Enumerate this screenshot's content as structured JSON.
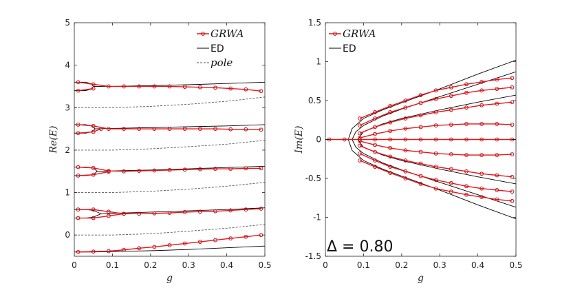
{
  "colors": {
    "grwa": "#e8141c",
    "grwa_marker": "#c41010",
    "ed": "#000000",
    "pole": "#555555"
  },
  "chart_data": [
    {
      "type": "line",
      "xlabel": "g",
      "ylabel": "Re(E)",
      "xlim": [
        0,
        0.5
      ],
      "ylim": [
        -0.5,
        5
      ],
      "xticks": [
        0,
        0.1,
        0.2,
        0.3,
        0.4,
        0.5
      ],
      "xtick_labels": [
        "0",
        "0.1",
        "0.2",
        "0.3",
        "0.4",
        "0.5"
      ],
      "yticks": [
        0,
        1,
        2,
        3,
        4,
        5
      ],
      "ytick_labels": [
        "0",
        "1",
        "2",
        "3",
        "4",
        "5"
      ],
      "legend": {
        "position": "top-right",
        "entries": [
          {
            "label": "GRWA",
            "style": "grwa"
          },
          {
            "label": "ED",
            "style": "ed"
          },
          {
            "label": "pole",
            "style": "pole"
          }
        ]
      },
      "series": [
        {
          "name": "ED",
          "style": "ed",
          "x": [
            0,
            0.05,
            0.1,
            0.2,
            0.3,
            0.4,
            0.5
          ],
          "y": [
            -0.4,
            -0.4,
            -0.39,
            -0.37,
            -0.34,
            -0.3,
            -0.26
          ]
        },
        {
          "name": "ED",
          "style": "ed",
          "x": [
            0,
            0.03,
            0.05,
            0.06,
            0.07
          ],
          "y": [
            0.6,
            0.6,
            0.58,
            0.54,
            0.5
          ]
        },
        {
          "name": "ED",
          "style": "ed",
          "x": [
            0,
            0.03,
            0.05,
            0.06,
            0.07
          ],
          "y": [
            0.4,
            0.4,
            0.42,
            0.46,
            0.5
          ]
        },
        {
          "name": "ED",
          "style": "ed",
          "x": [
            0.07,
            0.1,
            0.2,
            0.3,
            0.4,
            0.5
          ],
          "y": [
            0.5,
            0.51,
            0.54,
            0.57,
            0.6,
            0.64
          ]
        },
        {
          "name": "ED",
          "style": "ed",
          "x": [
            0,
            0.03,
            0.05,
            0.06
          ],
          "y": [
            1.6,
            1.6,
            1.58,
            1.5
          ]
        },
        {
          "name": "ED",
          "style": "ed",
          "x": [
            0,
            0.03,
            0.05,
            0.06
          ],
          "y": [
            1.4,
            1.4,
            1.42,
            1.5
          ]
        },
        {
          "name": "ED",
          "style": "ed",
          "x": [
            0.06,
            0.1,
            0.2,
            0.3,
            0.4,
            0.5
          ],
          "y": [
            1.5,
            1.51,
            1.53,
            1.56,
            1.59,
            1.62
          ]
        },
        {
          "name": "ED",
          "style": "ed",
          "x": [
            0,
            0.03,
            0.045,
            0.055
          ],
          "y": [
            2.6,
            2.6,
            2.57,
            2.5
          ]
        },
        {
          "name": "ED",
          "style": "ed",
          "x": [
            0,
            0.03,
            0.045,
            0.055
          ],
          "y": [
            2.4,
            2.4,
            2.43,
            2.5
          ]
        },
        {
          "name": "ED",
          "style": "ed",
          "x": [
            0.055,
            0.1,
            0.2,
            0.3,
            0.4,
            0.5
          ],
          "y": [
            2.5,
            2.51,
            2.53,
            2.55,
            2.57,
            2.6
          ]
        },
        {
          "name": "ED",
          "style": "ed",
          "x": [
            0,
            0.03,
            0.045,
            0.05
          ],
          "y": [
            3.6,
            3.6,
            3.56,
            3.5
          ]
        },
        {
          "name": "ED",
          "style": "ed",
          "x": [
            0,
            0.03,
            0.045,
            0.05
          ],
          "y": [
            3.4,
            3.4,
            3.44,
            3.5
          ]
        },
        {
          "name": "ED",
          "style": "ed",
          "x": [
            0.05,
            0.1,
            0.2,
            0.3,
            0.4,
            0.5
          ],
          "y": [
            3.5,
            3.5,
            3.52,
            3.54,
            3.57,
            3.6
          ]
        },
        {
          "name": "pole",
          "style": "pole",
          "x": [
            0,
            0.1,
            0.2,
            0.3,
            0.4,
            0.5
          ],
          "y": [
            0,
            0,
            0.03,
            0.09,
            0.16,
            0.25
          ]
        },
        {
          "name": "pole",
          "style": "pole",
          "x": [
            0,
            0.1,
            0.2,
            0.3,
            0.4,
            0.5
          ],
          "y": [
            1,
            1,
            1.03,
            1.08,
            1.15,
            1.24
          ]
        },
        {
          "name": "pole",
          "style": "pole",
          "x": [
            0,
            0.1,
            0.2,
            0.3,
            0.4,
            0.5
          ],
          "y": [
            2,
            2,
            2.03,
            2.08,
            2.14,
            2.23
          ]
        },
        {
          "name": "pole",
          "style": "pole",
          "x": [
            0,
            0.1,
            0.2,
            0.3,
            0.4,
            0.5
          ],
          "y": [
            3,
            3,
            3.03,
            3.08,
            3.15,
            3.25
          ]
        },
        {
          "name": "GRWA",
          "style": "grwa",
          "x": [
            0.01,
            0.05,
            0.09,
            0.13,
            0.17,
            0.21,
            0.25,
            0.29,
            0.33,
            0.37,
            0.41,
            0.45,
            0.49
          ],
          "y": [
            -0.4,
            -0.39,
            -0.38,
            -0.35,
            -0.31,
            -0.28,
            -0.24,
            -0.2,
            -0.16,
            -0.12,
            -0.08,
            -0.04,
            0.0
          ]
        },
        {
          "name": "GRWA",
          "style": "grwa",
          "x": [
            0.01,
            0.05,
            0.09,
            0.13,
            0.17,
            0.21,
            0.25,
            0.29,
            0.33,
            0.37,
            0.41,
            0.45,
            0.49
          ],
          "y": [
            0.6,
            0.6,
            0.55,
            0.5,
            0.5,
            0.51,
            0.52,
            0.54,
            0.55,
            0.56,
            0.58,
            0.6,
            0.62
          ]
        },
        {
          "name": "GRWA",
          "style": "grwa",
          "x": [
            0.01,
            0.05,
            0.09,
            0.13
          ],
          "y": [
            0.4,
            0.4,
            0.45,
            0.5
          ]
        },
        {
          "name": "GRWA",
          "style": "grwa",
          "x": [
            0.01,
            0.05,
            0.09,
            0.13,
            0.17,
            0.21,
            0.25,
            0.29,
            0.33,
            0.37,
            0.41,
            0.45,
            0.49
          ],
          "y": [
            1.6,
            1.58,
            1.51,
            1.5,
            1.51,
            1.52,
            1.53,
            1.54,
            1.55,
            1.56,
            1.56,
            1.57,
            1.57
          ]
        },
        {
          "name": "GRWA",
          "style": "grwa",
          "x": [
            0.01,
            0.05,
            0.09
          ],
          "y": [
            1.4,
            1.42,
            1.49
          ]
        },
        {
          "name": "GRWA",
          "style": "grwa",
          "x": [
            0.01,
            0.05,
            0.09,
            0.13,
            0.17,
            0.21,
            0.25,
            0.29,
            0.33,
            0.37,
            0.41,
            0.45,
            0.49
          ],
          "y": [
            2.6,
            2.57,
            2.5,
            2.5,
            2.5,
            2.5,
            2.5,
            2.5,
            2.5,
            2.5,
            2.49,
            2.49,
            2.48
          ]
        },
        {
          "name": "GRWA",
          "style": "grwa",
          "x": [
            0.01,
            0.05,
            0.07
          ],
          "y": [
            2.4,
            2.43,
            2.5
          ]
        },
        {
          "name": "GRWA",
          "style": "grwa",
          "x": [
            0.01,
            0.05,
            0.09,
            0.13,
            0.17,
            0.21,
            0.25,
            0.29,
            0.33,
            0.37,
            0.41,
            0.45,
            0.49
          ],
          "y": [
            3.6,
            3.55,
            3.5,
            3.5,
            3.5,
            3.5,
            3.5,
            3.49,
            3.48,
            3.47,
            3.45,
            3.43,
            3.39
          ]
        },
        {
          "name": "GRWA",
          "style": "grwa",
          "x": [
            0.01,
            0.05
          ],
          "y": [
            3.4,
            3.45
          ]
        }
      ]
    },
    {
      "type": "line",
      "xlabel": "g",
      "ylabel": "Im(E)",
      "xlim": [
        0,
        0.5
      ],
      "ylim": [
        -1.5,
        1.5
      ],
      "xticks": [
        0,
        0.1,
        0.2,
        0.3,
        0.4,
        0.5
      ],
      "xtick_labels": [
        "0",
        "0.1",
        "0.2",
        "0.3",
        "0.4",
        "0.5"
      ],
      "yticks": [
        -1.5,
        -1,
        -0.5,
        0,
        0.5,
        1,
        1.5
      ],
      "ytick_labels": [
        "-1.5",
        "-1",
        "-0.5",
        "0",
        "0.5",
        "1",
        "1.5"
      ],
      "legend": {
        "position": "top-left",
        "entries": [
          {
            "label": "GRWA",
            "style": "grwa"
          },
          {
            "label": "ED",
            "style": "ed"
          }
        ]
      },
      "annotation": "Δ = 0.80",
      "series": [
        {
          "name": "ED",
          "style": "ed",
          "x": [
            0,
            0.05,
            0.06
          ],
          "y": [
            0,
            0,
            0
          ]
        },
        {
          "name": "ED",
          "style": "ed",
          "x": [
            0.06,
            0.07,
            0.1,
            0.15,
            0.2,
            0.3,
            0.4,
            0.5
          ],
          "y": [
            0,
            0.14,
            0.27,
            0.38,
            0.47,
            0.65,
            0.84,
            1.02
          ]
        },
        {
          "name": "ED",
          "style": "ed",
          "x": [
            0.06,
            0.07,
            0.1,
            0.15,
            0.2,
            0.3,
            0.4,
            0.5
          ],
          "y": [
            0,
            -0.14,
            -0.27,
            -0.38,
            -0.47,
            -0.65,
            -0.84,
            -1.02
          ]
        },
        {
          "name": "ED",
          "style": "ed",
          "x": [
            0.07,
            0.08,
            0.1,
            0.15,
            0.2,
            0.3,
            0.4,
            0.5
          ],
          "y": [
            0,
            0.1,
            0.18,
            0.3,
            0.39,
            0.55,
            0.71,
            0.87
          ]
        },
        {
          "name": "ED",
          "style": "ed",
          "x": [
            0.07,
            0.08,
            0.1,
            0.15,
            0.2,
            0.3,
            0.4,
            0.5
          ],
          "y": [
            0,
            -0.1,
            -0.18,
            -0.3,
            -0.39,
            -0.55,
            -0.71,
            -0.87
          ]
        },
        {
          "name": "ED",
          "style": "ed",
          "x": [
            0.085,
            0.1,
            0.15,
            0.2,
            0.3,
            0.4,
            0.5
          ],
          "y": [
            0,
            0.1,
            0.2,
            0.27,
            0.38,
            0.48,
            0.57
          ]
        },
        {
          "name": "ED",
          "style": "ed",
          "x": [
            0.085,
            0.1,
            0.15,
            0.2,
            0.3,
            0.4,
            0.5
          ],
          "y": [
            0,
            -0.1,
            -0.2,
            -0.27,
            -0.38,
            -0.48,
            -0.57
          ]
        },
        {
          "name": "ED",
          "style": "ed",
          "x": [
            0.1,
            0.15,
            0.2,
            0.3,
            0.4,
            0.5
          ],
          "y": [
            0,
            0,
            0,
            0,
            0,
            0
          ]
        },
        {
          "name": "GRWA",
          "style": "grwa",
          "x": [
            0.01,
            0.05,
            0.09
          ],
          "y": [
            0,
            0,
            0
          ]
        },
        {
          "name": "GRWA",
          "style": "grwa",
          "x": [
            0.09,
            0.13,
            0.17,
            0.21,
            0.25,
            0.29,
            0.33,
            0.37,
            0.41,
            0.45,
            0.49
          ],
          "y": [
            0.27,
            0.35,
            0.43,
            0.5,
            0.57,
            0.63,
            0.67,
            0.71,
            0.74,
            0.77,
            0.79
          ]
        },
        {
          "name": "GRWA",
          "style": "grwa",
          "x": [
            0.09,
            0.13,
            0.17,
            0.21,
            0.25,
            0.29,
            0.33,
            0.37,
            0.41,
            0.45,
            0.49
          ],
          "y": [
            -0.27,
            -0.35,
            -0.43,
            -0.5,
            -0.57,
            -0.63,
            -0.67,
            -0.71,
            -0.74,
            -0.77,
            -0.79
          ]
        },
        {
          "name": "GRWA",
          "style": "grwa",
          "x": [
            0.09,
            0.13,
            0.17,
            0.21,
            0.25,
            0.29,
            0.33,
            0.37,
            0.41,
            0.45,
            0.49
          ],
          "y": [
            0.18,
            0.27,
            0.35,
            0.41,
            0.47,
            0.52,
            0.56,
            0.6,
            0.63,
            0.65,
            0.67
          ]
        },
        {
          "name": "GRWA",
          "style": "grwa",
          "x": [
            0.09,
            0.13,
            0.17,
            0.21,
            0.25,
            0.29,
            0.33,
            0.37,
            0.41,
            0.45,
            0.49
          ],
          "y": [
            -0.18,
            -0.27,
            -0.35,
            -0.41,
            -0.47,
            -0.52,
            -0.56,
            -0.6,
            -0.63,
            -0.65,
            -0.67
          ]
        },
        {
          "name": "GRWA",
          "style": "grwa",
          "x": [
            0.09,
            0.13,
            0.17,
            0.21,
            0.25,
            0.29,
            0.33,
            0.37,
            0.41,
            0.45,
            0.49
          ],
          "y": [
            0.08,
            0.16,
            0.22,
            0.27,
            0.31,
            0.35,
            0.38,
            0.41,
            0.44,
            0.46,
            0.48
          ]
        },
        {
          "name": "GRWA",
          "style": "grwa",
          "x": [
            0.09,
            0.13,
            0.17,
            0.21,
            0.25,
            0.29,
            0.33,
            0.37,
            0.41,
            0.45,
            0.49
          ],
          "y": [
            -0.08,
            -0.16,
            -0.22,
            -0.27,
            -0.31,
            -0.35,
            -0.38,
            -0.41,
            -0.44,
            -0.46,
            -0.48
          ]
        },
        {
          "name": "GRWA",
          "style": "grwa",
          "x": [
            0.09,
            0.13,
            0.17,
            0.21,
            0.25,
            0.29,
            0.33,
            0.37,
            0.41,
            0.45,
            0.49
          ],
          "y": [
            0.02,
            0.07,
            0.11,
            0.14,
            0.16,
            0.18,
            0.19,
            0.2,
            0.2,
            0.2,
            0.19
          ]
        },
        {
          "name": "GRWA",
          "style": "grwa",
          "x": [
            0.09,
            0.13,
            0.17,
            0.21,
            0.25,
            0.29,
            0.33,
            0.37,
            0.41,
            0.45,
            0.49
          ],
          "y": [
            -0.02,
            -0.07,
            -0.11,
            -0.14,
            -0.16,
            -0.18,
            -0.19,
            -0.2,
            -0.2,
            -0.2,
            -0.19
          ]
        },
        {
          "name": "GRWA",
          "style": "grwa",
          "x": [
            0.09,
            0.13,
            0.17,
            0.21,
            0.25,
            0.29,
            0.33,
            0.37,
            0.41,
            0.45,
            0.49
          ],
          "y": [
            0,
            0,
            0,
            0,
            0,
            0,
            0,
            0,
            0,
            0,
            0
          ]
        }
      ]
    }
  ]
}
